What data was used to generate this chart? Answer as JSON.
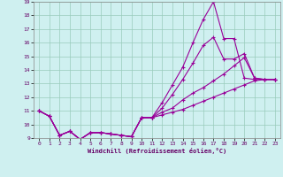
{
  "xlabel": "Windchill (Refroidissement éolien,°C)",
  "bg_color": "#cff0f0",
  "line_color": "#990099",
  "grid_color": "#99ccbb",
  "xlim": [
    -0.5,
    23.5
  ],
  "ylim": [
    9,
    19
  ],
  "yticks": [
    9,
    10,
    11,
    12,
    13,
    14,
    15,
    16,
    17,
    18,
    19
  ],
  "xticks": [
    0,
    1,
    2,
    3,
    4,
    5,
    6,
    7,
    8,
    9,
    10,
    11,
    12,
    13,
    14,
    15,
    16,
    17,
    18,
    19,
    20,
    21,
    22,
    23
  ],
  "line1_x": [
    0,
    1,
    2,
    3,
    4,
    5,
    6,
    7,
    8,
    9,
    10,
    11,
    12,
    13,
    14,
    15,
    16,
    17,
    18,
    19,
    20,
    21,
    22,
    23
  ],
  "line1_y": [
    11.0,
    10.6,
    9.2,
    9.5,
    8.9,
    9.4,
    9.4,
    9.3,
    9.2,
    9.1,
    10.5,
    10.5,
    11.6,
    12.9,
    14.2,
    16.0,
    17.7,
    19.0,
    16.3,
    16.3,
    13.4,
    13.3,
    13.3,
    13.3
  ],
  "line2_x": [
    0,
    1,
    2,
    3,
    4,
    5,
    6,
    7,
    8,
    9,
    10,
    11,
    12,
    13,
    14,
    15,
    16,
    17,
    18,
    19,
    20,
    21,
    22,
    23
  ],
  "line2_y": [
    11.0,
    10.6,
    9.2,
    9.5,
    8.9,
    9.4,
    9.4,
    9.3,
    9.2,
    9.1,
    10.5,
    10.5,
    11.2,
    12.2,
    13.3,
    14.5,
    15.8,
    16.4,
    14.8,
    14.8,
    15.2,
    13.4,
    13.3,
    13.3
  ],
  "line3_x": [
    0,
    1,
    2,
    3,
    4,
    5,
    6,
    7,
    8,
    9,
    10,
    11,
    12,
    13,
    14,
    15,
    16,
    17,
    18,
    19,
    20,
    21,
    22,
    23
  ],
  "line3_y": [
    11.0,
    10.6,
    9.2,
    9.5,
    8.9,
    9.4,
    9.4,
    9.3,
    9.2,
    9.1,
    10.5,
    10.5,
    10.9,
    11.2,
    11.8,
    12.3,
    12.7,
    13.2,
    13.7,
    14.3,
    14.9,
    13.4,
    13.3,
    13.3
  ],
  "line4_x": [
    0,
    1,
    2,
    3,
    4,
    5,
    6,
    7,
    8,
    9,
    10,
    11,
    12,
    13,
    14,
    15,
    16,
    17,
    18,
    19,
    20,
    21,
    22,
    23
  ],
  "line4_y": [
    11.0,
    10.6,
    9.2,
    9.5,
    8.9,
    9.4,
    9.4,
    9.3,
    9.2,
    9.1,
    10.5,
    10.5,
    10.7,
    10.9,
    11.1,
    11.4,
    11.7,
    12.0,
    12.3,
    12.6,
    12.9,
    13.2,
    13.3,
    13.3
  ]
}
